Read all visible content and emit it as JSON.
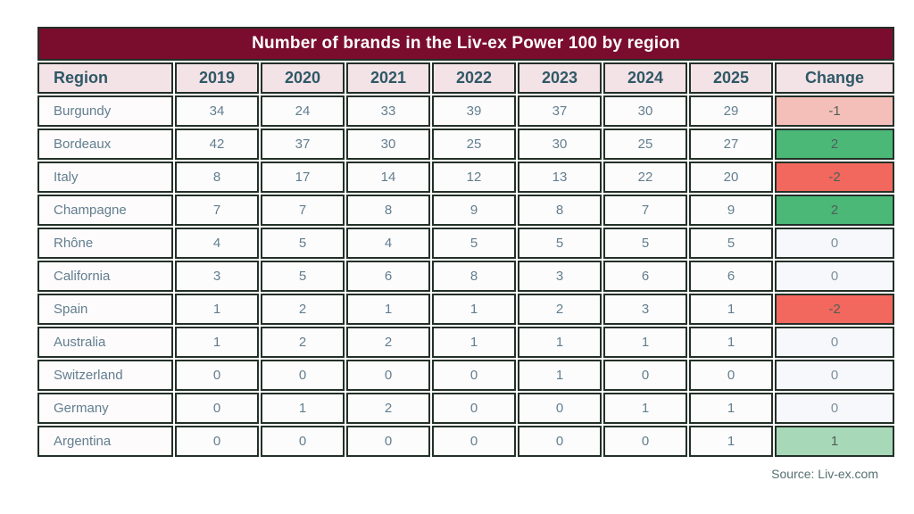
{
  "title": "Number of brands in the Liv-ex Power 100 by region",
  "source": "Source: Liv-ex.com",
  "colors": {
    "title_bar": "#7a0d2e",
    "title_text": "#ffffff",
    "header_bg": "#f3e2e6",
    "header_text": "#2f5866",
    "cell_text": "#627e8e",
    "border": "#233028",
    "change_negative_light": "#f5bfb9",
    "change_negative_strong": "#f2685f",
    "change_positive": "#4bb878",
    "change_positive_light": "#a7d8b7",
    "change_neutral": "#f7f8fb"
  },
  "chart_data": {
    "type": "table",
    "title": "Number of brands in the Liv-ex Power 100 by region",
    "columns": [
      "Region",
      "2019",
      "2020",
      "2021",
      "2022",
      "2023",
      "2024",
      "2025",
      "Change"
    ],
    "rows": [
      {
        "region": "Burgundy",
        "values": [
          34,
          24,
          33,
          39,
          37,
          30,
          29
        ],
        "change": "-1",
        "change_style": "neg"
      },
      {
        "region": "Bordeaux",
        "values": [
          42,
          37,
          30,
          25,
          30,
          25,
          27
        ],
        "change": "2",
        "change_style": "pos"
      },
      {
        "region": "Italy",
        "values": [
          8,
          17,
          14,
          12,
          13,
          22,
          20
        ],
        "change": "-2",
        "change_style": "neg-strong"
      },
      {
        "region": "Champagne",
        "values": [
          7,
          7,
          8,
          9,
          8,
          7,
          9
        ],
        "change": "2",
        "change_style": "pos"
      },
      {
        "region": "Rhône",
        "values": [
          4,
          5,
          4,
          5,
          5,
          5,
          5
        ],
        "change": "0",
        "change_style": "neutral"
      },
      {
        "region": "California",
        "values": [
          3,
          5,
          6,
          8,
          3,
          6,
          6
        ],
        "change": "0",
        "change_style": "neutral"
      },
      {
        "region": "Spain",
        "values": [
          1,
          2,
          1,
          1,
          2,
          3,
          1
        ],
        "change": "-2",
        "change_style": "neg-strong"
      },
      {
        "region": "Australia",
        "values": [
          1,
          2,
          2,
          1,
          1,
          1,
          1
        ],
        "change": "0",
        "change_style": "neutral"
      },
      {
        "region": "Switzerland",
        "values": [
          0,
          0,
          0,
          0,
          1,
          0,
          0
        ],
        "change": "0",
        "change_style": "neutral"
      },
      {
        "region": "Germany",
        "values": [
          0,
          1,
          2,
          0,
          0,
          1,
          1
        ],
        "change": "0",
        "change_style": "neutral"
      },
      {
        "region": "Argentina",
        "values": [
          0,
          0,
          0,
          0,
          0,
          0,
          1
        ],
        "change": "1",
        "change_style": "pos-light"
      }
    ]
  }
}
